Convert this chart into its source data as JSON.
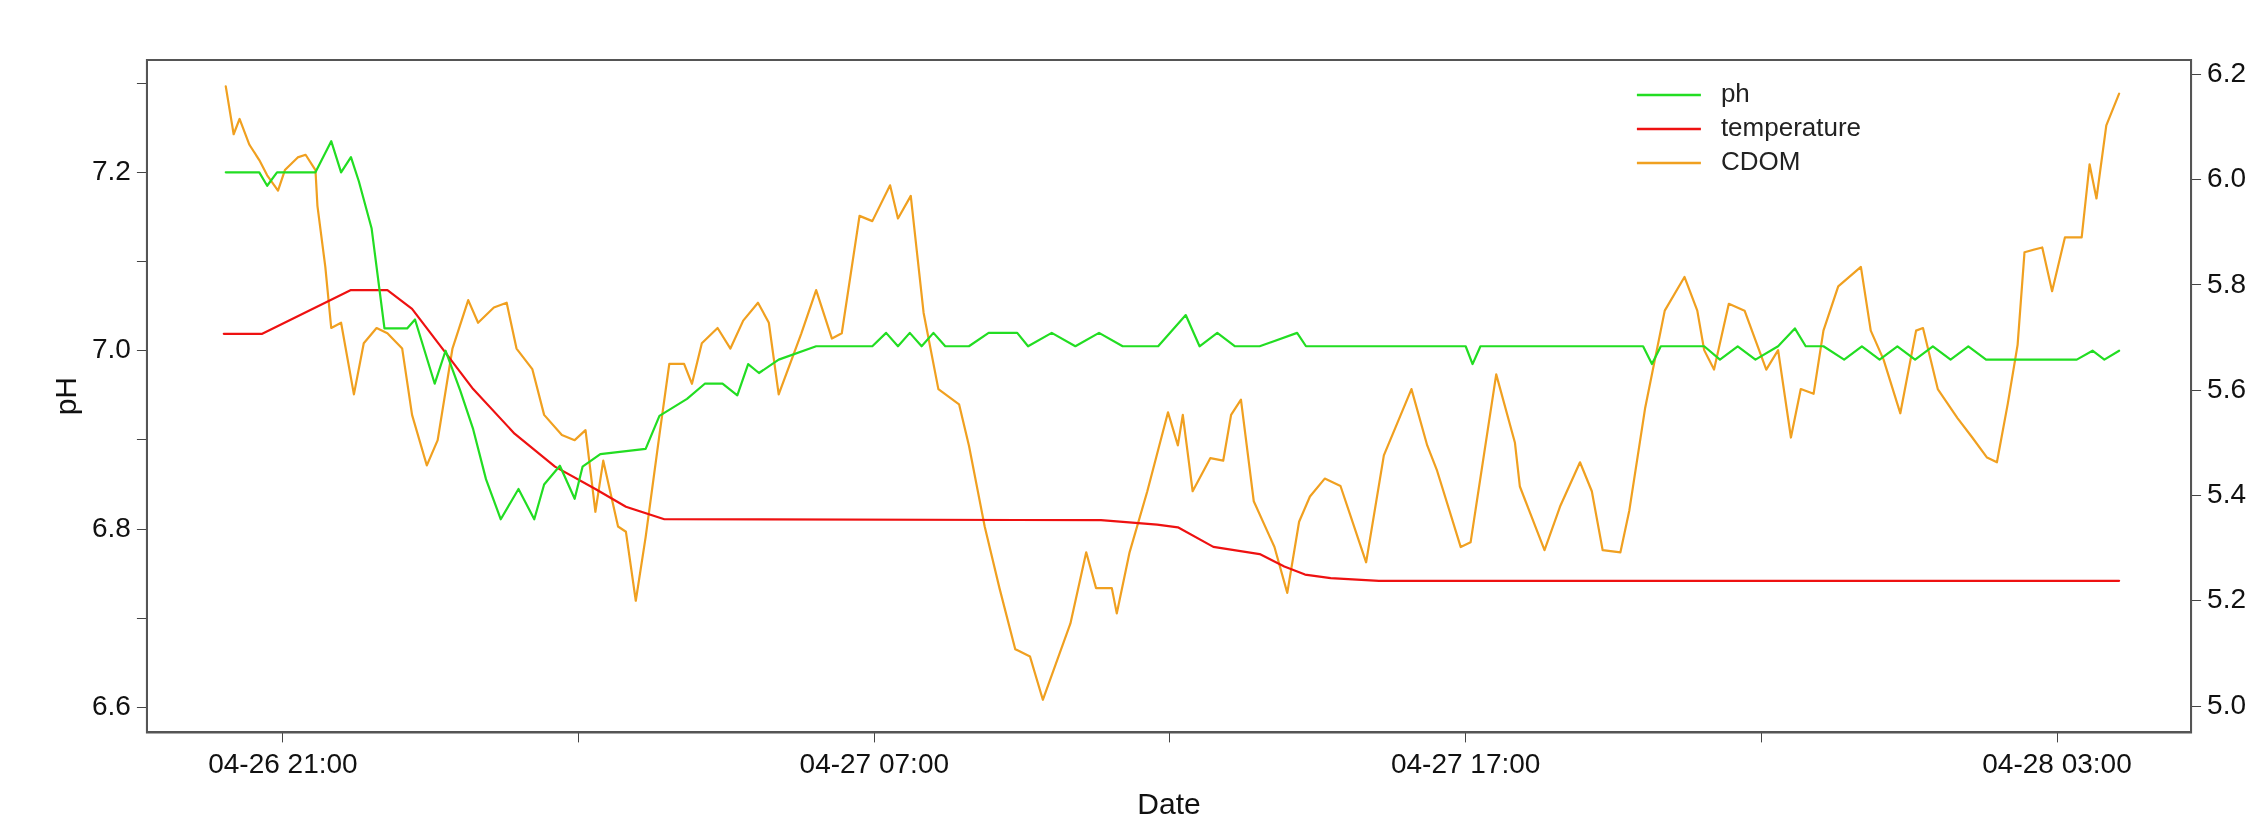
{
  "chart_data": {
    "type": "line",
    "xlabel": "Date",
    "ylabel": "pH",
    "xlim": [
      "--04-26T18:42",
      "--04-28T05:16"
    ],
    "xticks": [
      {
        "value": "--04-26T21:00",
        "label": "04-26 21:00"
      },
      {
        "value": "--04-27T02:00",
        "label": null
      },
      {
        "value": "--04-27T07:00",
        "label": "04-27 07:00"
      },
      {
        "value": "--04-27T12:00",
        "label": null
      },
      {
        "value": "--04-27T17:00",
        "label": "04-27 17:00"
      },
      {
        "value": "--04-27T22:00",
        "label": null
      },
      {
        "value": "--04-28T03:00",
        "label": "04-28 03:00"
      }
    ],
    "ylim": [
      6.572,
      7.326
    ],
    "yticks": [
      6.6,
      {
        "value": 6.7,
        "label": null
      },
      6.8,
      {
        "value": 6.9,
        "label": null
      },
      {
        "value": 7,
        "label": "7.0"
      },
      {
        "value": 7.1,
        "label": null
      },
      7.2,
      {
        "value": 7.3,
        "label": null
      }
    ],
    "y2lim": [
      4.95,
      6.227
    ],
    "y2ticks": [
      {
        "value": 5,
        "label": "5.0"
      },
      5.2,
      5.4,
      5.6,
      5.8,
      {
        "value": 6,
        "label": "6.0"
      },
      6.2
    ],
    "legend": "top right",
    "grid": false,
    "line_style": "solid",
    "series": [
      {
        "name": "ph",
        "color": "#22dd22",
        "x": [
          "--04-26T20:02",
          "--04-26T20:36",
          "--04-26T20:44",
          "--04-26T20:54",
          "--04-26T21:33",
          "--04-26T21:49",
          "--04-26T21:59",
          "--04-26T22:09",
          "--04-26T22:17",
          "--04-26T22:30",
          "--04-26T22:43",
          "--04-26T23:06",
          "--04-26T23:14",
          "--04-26T23:34",
          "--04-26T23:45",
          "--04-27T00:00",
          "--04-27T00:13",
          "--04-27T00:26",
          "--04-27T00:41",
          "--04-27T00:59",
          "--04-27T01:15",
          "--04-27T01:25",
          "--04-27T01:41",
          "--04-27T01:56",
          "--04-27T02:04",
          "--04-27T02:22",
          "--04-27T03:08",
          "--04-27T03:22",
          "--04-27T03:50",
          "--04-27T04:08",
          "--04-27T04:26",
          "--04-27T04:41",
          "--04-27T04:52",
          "--04-27T05:03",
          "--04-27T05:23",
          "--04-27T06:01",
          "--04-27T06:58",
          "--04-27T07:12",
          "--04-27T07:24",
          "--04-27T07:36",
          "--04-27T07:48",
          "--04-27T08:00",
          "--04-27T08:12",
          "--04-27T08:36",
          "--04-27T08:56",
          "--04-27T09:25",
          "--04-27T09:36",
          "--04-27T10:00",
          "--04-27T10:24",
          "--04-27T10:48",
          "--04-27T11:12",
          "--04-27T11:48",
          "--04-27T12:16",
          "--04-27T12:30",
          "--04-27T12:48",
          "--04-27T13:06",
          "--04-27T13:31",
          "--04-27T14:09",
          "--04-27T14:18",
          "--04-27T17:00",
          "--04-27T17:07",
          "--04-27T17:15",
          "--04-27T20:00",
          "--04-27T20:09",
          "--04-27T20:18",
          "--04-27T21:02",
          "--04-27T21:18",
          "--04-27T21:36",
          "--04-27T21:54",
          "--04-27T22:17",
          "--04-27T22:34",
          "--04-27T22:45",
          "--04-27T23:03",
          "--04-27T23:24",
          "--04-27T23:42",
          "--04-28T00:00",
          "--04-28T00:18",
          "--04-28T00:36",
          "--04-28T00:54",
          "--04-28T01:12",
          "--04-28T01:30",
          "--04-28T01:48",
          "--04-28T02:10",
          "--04-28T03:20",
          "--04-28T03:36",
          "--04-28T03:48",
          "--04-28T04:03"
        ],
        "values": [
          7.2,
          7.2,
          7.185,
          7.2,
          7.2,
          7.235,
          7.2,
          7.217,
          7.19,
          7.137,
          7.025,
          7.025,
          7.035,
          6.963,
          7.0,
          6.955,
          6.912,
          6.856,
          6.811,
          6.845,
          6.811,
          6.85,
          6.871,
          6.834,
          6.87,
          6.884,
          6.89,
          6.927,
          6.946,
          6.963,
          6.963,
          6.95,
          6.985,
          6.975,
          6.99,
          7.005,
          7.005,
          7.02,
          7.005,
          7.02,
          7.005,
          7.02,
          7.005,
          7.005,
          7.02,
          7.02,
          7.005,
          7.02,
          7.005,
          7.02,
          7.005,
          7.005,
          7.04,
          7.005,
          7.02,
          7.005,
          7.005,
          7.02,
          7.005,
          7.005,
          6.985,
          7.005,
          7.005,
          6.985,
          7.005,
          7.005,
          6.99,
          7.005,
          6.99,
          7.005,
          7.025,
          7.005,
          7.005,
          6.99,
          7.005,
          6.99,
          7.005,
          6.99,
          7.005,
          6.99,
          7.005,
          6.99,
          6.99,
          6.99,
          7.0,
          6.99,
          7.0
        ]
      },
      {
        "name": "temperature",
        "color": "#ee1111",
        "x": [
          "--04-26T20:00",
          "--04-26T20:39",
          "--04-26T22:09",
          "--04-26T22:46",
          "--04-26T23:11",
          "--04-26T23:42",
          "--04-27T00:13",
          "--04-27T00:55",
          "--04-27T01:36",
          "--04-27T02:17",
          "--04-27T02:48",
          "--04-27T03:27",
          "--04-27T10:50",
          "--04-27T11:47",
          "--04-27T12:08",
          "--04-27T12:44",
          "--04-27T13:31",
          "--04-27T13:56",
          "--04-27T14:17",
          "--04-27T14:43",
          "--04-27T15:32",
          "--04-28T04:03"
        ],
        "values": [
          7.019,
          7.019,
          7.068,
          7.068,
          7.047,
          7.002,
          6.957,
          6.907,
          6.87,
          6.845,
          6.825,
          6.811,
          6.81,
          6.805,
          6.802,
          6.78,
          6.772,
          6.758,
          6.749,
          6.745,
          6.742,
          6.742
        ]
      },
      {
        "name": "CDOM",
        "color": "#f0a020",
        "axis": "y2",
        "x": [
          "--04-26T20:02",
          "--04-26T20:10",
          "--04-26T20:16",
          "--04-26T20:26",
          "--04-26T20:36",
          "--04-26T20:44",
          "--04-26T20:55",
          "--04-26T21:02",
          "--04-26T21:15",
          "--04-26T21:23",
          "--04-26T21:33",
          "--04-26T21:35",
          "--04-26T21:43",
          "--04-26T21:49",
          "--04-26T21:59",
          "--04-26T22:12",
          "--04-26T22:22",
          "--04-26T22:35",
          "--04-26T22:46",
          "--04-26T23:01",
          "--04-26T23:11",
          "--04-26T23:26",
          "--04-26T23:37",
          "--04-26T23:52",
          "--04-27T00:08",
          "--04-27T00:18",
          "--04-27T00:34",
          "--04-27T00:47",
          "--04-27T00:57",
          "--04-27T01:13",
          "--04-27T01:25",
          "--04-27T01:43",
          "--04-27T01:56",
          "--04-27T02:07",
          "--04-27T02:17",
          "--04-27T02:25",
          "--04-27T02:40",
          "--04-27T02:48",
          "--04-27T02:58",
          "--04-27T03:08",
          "--04-27T03:22",
          "--04-27T03:32",
          "--04-27T03:47",
          "--04-27T03:55",
          "--04-27T04:05",
          "--04-27T04:21",
          "--04-27T04:34",
          "--04-27T04:47",
          "--04-27T05:02",
          "--04-27T05:13",
          "--04-27T05:23",
          "--04-27T05:46",
          "--04-27T06:01",
          "--04-27T06:17",
          "--04-27T06:27",
          "--04-27T06:45",
          "--04-27T06:58",
          "--04-27T07:16",
          "--04-27T07:24",
          "--04-27T07:37",
          "--04-27T07:50",
          "--04-27T08:05",
          "--04-27T08:26",
          "--04-27T08:36",
          "--04-27T08:52",
          "--04-27T09:07",
          "--04-27T09:23",
          "--04-27T09:38",
          "--04-27T09:51",
          "--04-27T10:04",
          "--04-27T10:19",
          "--04-27T10:35",
          "--04-27T10:45",
          "--04-27T11:01",
          "--04-27T11:06",
          "--04-27T11:19",
          "--04-27T11:37",
          "--04-27T11:58",
          "--04-27T12:08",
          "--04-27T12:13",
          "--04-27T12:23",
          "--04-27T12:41",
          "--04-27T12:54",
          "--04-27T13:02",
          "--04-27T13:12",
          "--04-27T13:25",
          "--04-27T13:46",
          "--04-27T13:59",
          "--04-27T14:11",
          "--04-27T14:22",
          "--04-27T14:37",
          "--04-27T14:53",
          "--04-27T15:19",
          "--04-27T15:37",
          "--04-27T16:05",
          "--04-27T16:21",
          "--04-27T16:31",
          "--04-27T16:55",
          "--04-27T17:05",
          "--04-27T17:31",
          "--04-27T17:50",
          "--04-27T17:55",
          "--04-27T18:20",
          "--04-27T18:36",
          "--04-27T18:56",
          "--04-27T19:08",
          "--04-27T19:19",
          "--04-27T19:37",
          "--04-27T19:46",
          "--04-27T20:02",
          "--04-27T20:22",
          "--04-27T20:42",
          "--04-27T20:55",
          "--04-27T21:02",
          "--04-27T21:12",
          "--04-27T21:27",
          "--04-27T21:43",
          "--04-27T22:05",
          "--04-27T22:17",
          "--04-27T22:30",
          "--04-27T22:40",
          "--04-27T22:53",
          "--04-27T23:03",
          "--04-27T23:18",
          "--04-27T23:41",
          "--04-27T23:51",
          "--04-28T00:04",
          "--04-28T00:21",
          "--04-28T00:37",
          "--04-28T00:44",
          "--04-28T00:59",
          "--04-28T01:19",
          "--04-28T01:34",
          "--04-28T01:49",
          "--04-28T01:59",
          "--04-28T02:10",
          "--04-28T02:20",
          "--04-28T02:27",
          "--04-28T02:45",
          "--04-28T02:55",
          "--04-28T03:08",
          "--04-28T03:25",
          "--04-28T03:33",
          "--04-28T03:40",
          "--04-28T03:50",
          "--04-28T04:03"
        ],
        "values": [
          6.177,
          6.086,
          6.115,
          6.066,
          6.037,
          6.008,
          5.979,
          6.018,
          6.042,
          6.047,
          6.018,
          5.95,
          5.834,
          5.718,
          5.728,
          5.592,
          5.689,
          5.718,
          5.708,
          5.679,
          5.553,
          5.457,
          5.505,
          5.679,
          5.771,
          5.728,
          5.757,
          5.766,
          5.679,
          5.64,
          5.553,
          5.515,
          5.505,
          5.524,
          5.369,
          5.466,
          5.341,
          5.331,
          5.2,
          5.321,
          5.515,
          5.65,
          5.65,
          5.612,
          5.689,
          5.718,
          5.679,
          5.732,
          5.766,
          5.728,
          5.592,
          5.708,
          5.79,
          5.698,
          5.708,
          5.931,
          5.921,
          5.989,
          5.926,
          5.969,
          5.747,
          5.602,
          5.573,
          5.495,
          5.341,
          5.224,
          5.108,
          5.094,
          5.012,
          5.079,
          5.157,
          5.292,
          5.224,
          5.224,
          5.176,
          5.292,
          5.408,
          5.558,
          5.495,
          5.553,
          5.408,
          5.471,
          5.466,
          5.553,
          5.582,
          5.389,
          5.302,
          5.215,
          5.35,
          5.398,
          5.432,
          5.418,
          5.273,
          5.476,
          5.602,
          5.495,
          5.447,
          5.302,
          5.311,
          5.63,
          5.5,
          5.417,
          5.296,
          5.38,
          5.463,
          5.408,
          5.296,
          5.292,
          5.371,
          5.565,
          5.751,
          5.815,
          5.751,
          5.676,
          5.639,
          5.764,
          5.751,
          5.639,
          5.676,
          5.51,
          5.602,
          5.593,
          5.713,
          5.797,
          5.834,
          5.713,
          5.658,
          5.556,
          5.713,
          5.718,
          5.602,
          5.547,
          5.51,
          5.472,
          5.463,
          5.574,
          5.686,
          5.862,
          5.871,
          5.788,
          5.89,
          5.89,
          6.029,
          5.964,
          6.103,
          6.163
        ]
      }
    ]
  }
}
